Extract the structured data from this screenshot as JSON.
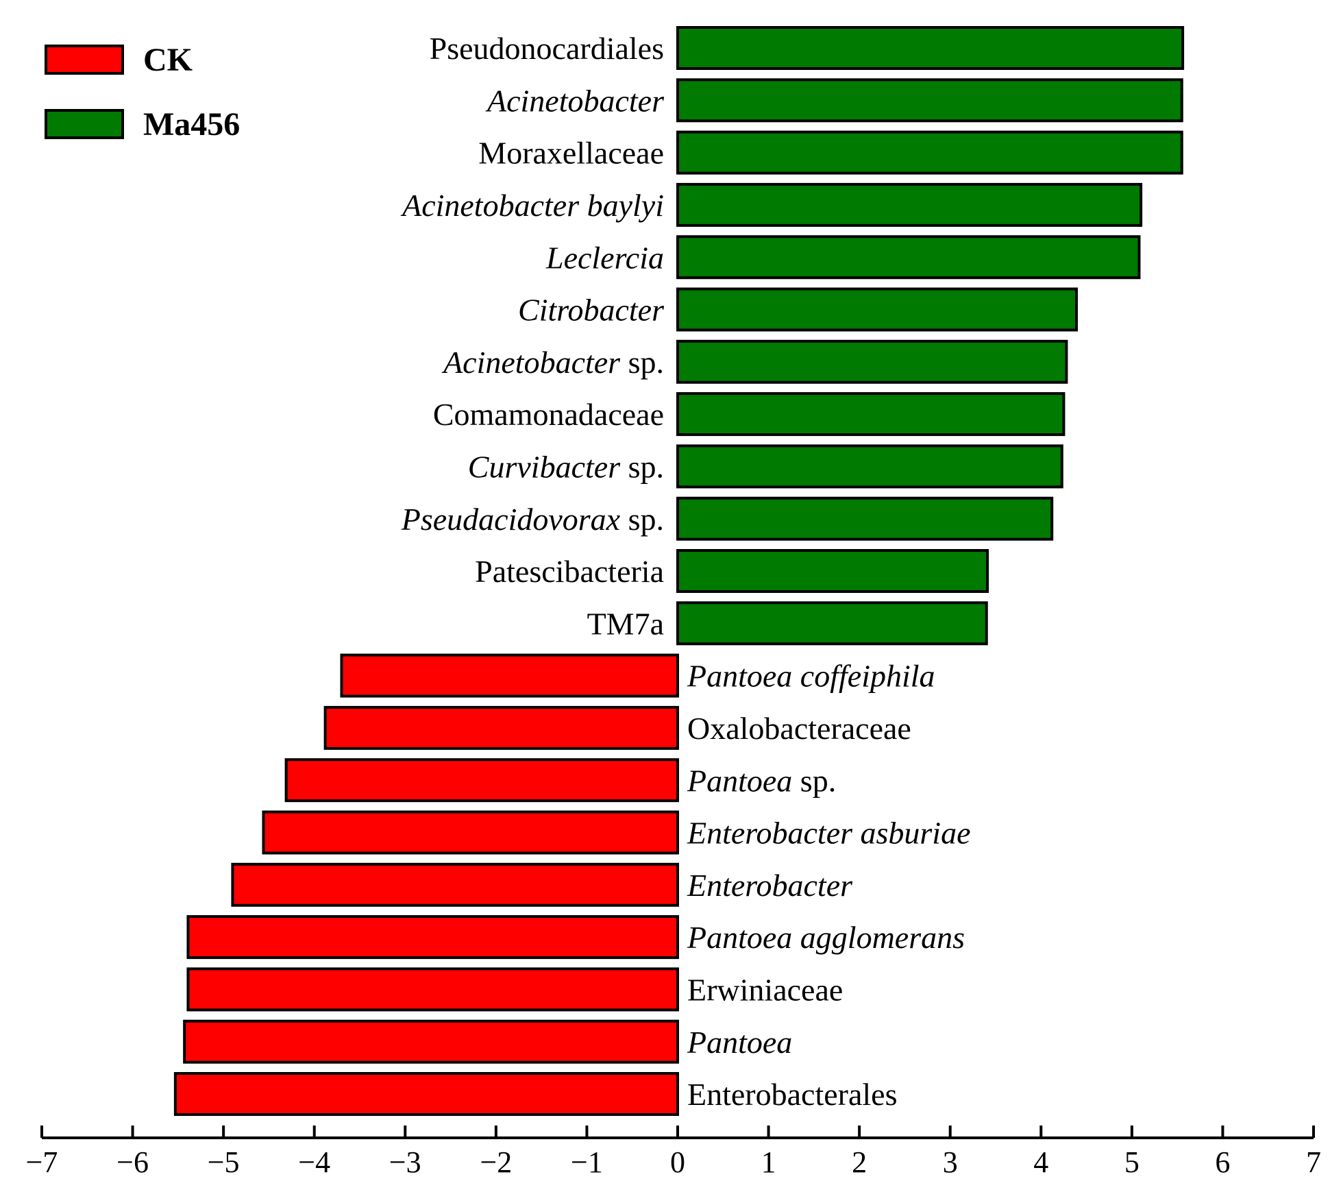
{
  "chart_data": {
    "type": "bar",
    "orientation": "horizontal",
    "title": "",
    "xlabel": "",
    "ylabel": "",
    "xlim": [
      -7,
      7
    ],
    "x_ticks": [
      "−7",
      "−6",
      "−5",
      "−4",
      "−3",
      "−2",
      "−1",
      "0",
      "1",
      "2",
      "3",
      "4",
      "5",
      "6",
      "7"
    ],
    "grid": false,
    "legend_position": "top-left",
    "legend": [
      {
        "label": "CK",
        "color": "#ff0000"
      },
      {
        "label": "Ma456",
        "color": "#007a00"
      }
    ],
    "bars": [
      {
        "parts": [
          {
            "text": "Pseudonocardiales",
            "italic": false
          }
        ],
        "value": 5.56,
        "group": "Ma456"
      },
      {
        "parts": [
          {
            "text": "Acinetobacter",
            "italic": true
          }
        ],
        "value": 5.55,
        "group": "Ma456"
      },
      {
        "parts": [
          {
            "text": "Moraxellaceae",
            "italic": false
          }
        ],
        "value": 5.55,
        "group": "Ma456"
      },
      {
        "parts": [
          {
            "text": "Acinetobacter baylyi",
            "italic": true
          }
        ],
        "value": 5.1,
        "group": "Ma456"
      },
      {
        "parts": [
          {
            "text": "Leclercia",
            "italic": true
          }
        ],
        "value": 5.08,
        "group": "Ma456"
      },
      {
        "parts": [
          {
            "text": "Citrobacter",
            "italic": true
          }
        ],
        "value": 4.39,
        "group": "Ma456"
      },
      {
        "parts": [
          {
            "text": "Acinetobacter",
            "italic": true
          },
          {
            "text": " sp.",
            "italic": false
          }
        ],
        "value": 4.28,
        "group": "Ma456"
      },
      {
        "parts": [
          {
            "text": "Comamonadaceae",
            "italic": false
          }
        ],
        "value": 4.25,
        "group": "Ma456"
      },
      {
        "parts": [
          {
            "text": "Curvibacter",
            "italic": true
          },
          {
            "text": " sp.",
            "italic": false
          }
        ],
        "value": 4.23,
        "group": "Ma456"
      },
      {
        "parts": [
          {
            "text": "Pseudacidovorax",
            "italic": true
          },
          {
            "text": " sp.",
            "italic": false
          }
        ],
        "value": 4.12,
        "group": "Ma456"
      },
      {
        "parts": [
          {
            "text": "Patescibacteria",
            "italic": false
          }
        ],
        "value": 3.41,
        "group": "Ma456"
      },
      {
        "parts": [
          {
            "text": "TM7a",
            "italic": false
          }
        ],
        "value": 3.4,
        "group": "Ma456"
      },
      {
        "parts": [
          {
            "text": "Pantoea coffeiphila",
            "italic": true
          }
        ],
        "value": -3.7,
        "group": "CK"
      },
      {
        "parts": [
          {
            "text": "Oxalobacteraceae",
            "italic": false
          }
        ],
        "value": -3.88,
        "group": "CK"
      },
      {
        "parts": [
          {
            "text": "Pantoea",
            "italic": true
          },
          {
            "text": " sp.",
            "italic": false
          }
        ],
        "value": -4.31,
        "group": "CK"
      },
      {
        "parts": [
          {
            "text": "Enterobacter asburiae",
            "italic": true
          }
        ],
        "value": -4.56,
        "group": "CK"
      },
      {
        "parts": [
          {
            "text": "Enterobacter",
            "italic": true
          }
        ],
        "value": -4.9,
        "group": "CK"
      },
      {
        "parts": [
          {
            "text": "Pantoea agglomerans",
            "italic": true
          }
        ],
        "value": -5.39,
        "group": "CK"
      },
      {
        "parts": [
          {
            "text": "Erwiniaceae",
            "italic": false
          }
        ],
        "value": -5.39,
        "group": "CK"
      },
      {
        "parts": [
          {
            "text": "Pantoea",
            "italic": true
          }
        ],
        "value": -5.43,
        "group": "CK"
      },
      {
        "parts": [
          {
            "text": "Enterobacterales",
            "italic": false
          }
        ],
        "value": -5.53,
        "group": "CK"
      }
    ]
  }
}
